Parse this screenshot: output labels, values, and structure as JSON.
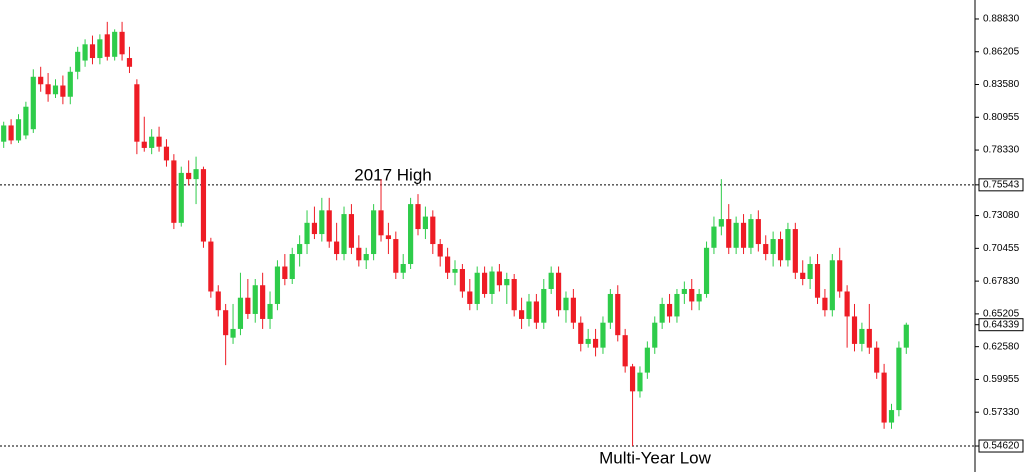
{
  "chart_data": {
    "type": "candlestick",
    "ylim": [
      0.535,
      0.9035
    ],
    "yticks": [
      {
        "value": 0.8883,
        "label": "0.88830"
      },
      0.86205,
      {
        "value": 0.8358,
        "label": "0.83580"
      },
      0.80955,
      {
        "value": 0.7833,
        "label": "0.78330"
      },
      0.75543,
      {
        "value": 0.7308,
        "label": "0.73080"
      },
      0.70455,
      {
        "value": 0.6783,
        "label": "0.67830"
      },
      0.65205,
      0.64339,
      {
        "value": 0.6258,
        "label": "0.62580"
      },
      0.59955,
      {
        "value": 0.5733,
        "label": "0.57330"
      },
      {
        "value": 0.5462,
        "label": "0.54620"
      }
    ],
    "annotations": [
      {
        "text": "2017 High",
        "y": 0.75543
      },
      {
        "text": "Multi-Year Low",
        "y": 0.5462
      }
    ],
    "up_color": "#2ecc4a",
    "down_color": "#ee1c25",
    "open": [
      0.79,
      0.803,
      0.791,
      0.795,
      0.8,
      0.842,
      0.836,
      0.828,
      0.835,
      0.826,
      0.846,
      0.855,
      0.868,
      0.857,
      0.876,
      0.858,
      0.878,
      0.857,
      0.836,
      0.79,
      0.785,
      0.794,
      0.786,
      0.775,
      0.725,
      0.765,
      0.76,
      0.768,
      0.71,
      0.67,
      0.655,
      0.633,
      0.64,
      0.665,
      0.652,
      0.675,
      0.648,
      0.66,
      0.69,
      0.68,
      0.7,
      0.708,
      0.725,
      0.716,
      0.735,
      0.71,
      0.7,
      0.732,
      0.705,
      0.695,
      0.7,
      0.735,
      0.715,
      0.712,
      0.685,
      0.692,
      0.74,
      0.72,
      0.73,
      0.708,
      0.698,
      0.685,
      0.688,
      0.67,
      0.66,
      0.685,
      0.668,
      0.686,
      0.675,
      0.68,
      0.655,
      0.648,
      0.662,
      0.645,
      0.672,
      0.685,
      0.655,
      0.665,
      0.645,
      0.628,
      0.632,
      0.625,
      0.645,
      0.668,
      0.635,
      0.61,
      0.59,
      0.605,
      0.625,
      0.645,
      0.66,
      0.65,
      0.668,
      0.672,
      0.662,
      0.668,
      0.705,
      0.722,
      0.728,
      0.705,
      0.725,
      0.705,
      0.728,
      0.708,
      0.7,
      0.712,
      0.695,
      0.72,
      0.685,
      0.68,
      0.692,
      0.665,
      0.655,
      0.695,
      0.67,
      0.65,
      0.628,
      0.64,
      0.625,
      0.605,
      0.565,
      0.575,
      0.625
    ],
    "high": [
      0.806,
      0.808,
      0.812,
      0.822,
      0.848,
      0.85,
      0.845,
      0.84,
      0.843,
      0.85,
      0.866,
      0.872,
      0.875,
      0.876,
      0.886,
      0.88,
      0.886,
      0.866,
      0.84,
      0.81,
      0.8,
      0.802,
      0.792,
      0.78,
      0.77,
      0.775,
      0.778,
      0.77,
      0.713,
      0.675,
      0.66,
      0.66,
      0.685,
      0.68,
      0.68,
      0.685,
      0.67,
      0.695,
      0.7,
      0.705,
      0.715,
      0.735,
      0.738,
      0.745,
      0.745,
      0.725,
      0.738,
      0.74,
      0.715,
      0.705,
      0.74,
      0.76,
      0.725,
      0.718,
      0.7,
      0.745,
      0.748,
      0.738,
      0.735,
      0.712,
      0.705,
      0.695,
      0.692,
      0.68,
      0.69,
      0.69,
      0.69,
      0.692,
      0.685,
      0.684,
      0.665,
      0.668,
      0.668,
      0.68,
      0.69,
      0.69,
      0.67,
      0.672,
      0.65,
      0.64,
      0.64,
      0.65,
      0.672,
      0.675,
      0.64,
      0.612,
      0.61,
      0.63,
      0.65,
      0.665,
      0.668,
      0.672,
      0.678,
      0.68,
      0.672,
      0.71,
      0.73,
      0.76,
      0.74,
      0.73,
      0.732,
      0.732,
      0.735,
      0.715,
      0.718,
      0.718,
      0.725,
      0.725,
      0.695,
      0.698,
      0.7,
      0.672,
      0.7,
      0.705,
      0.675,
      0.66,
      0.645,
      0.66,
      0.63,
      0.612,
      0.58,
      0.63,
      0.645
    ],
    "low": [
      0.785,
      0.788,
      0.789,
      0.792,
      0.797,
      0.83,
      0.822,
      0.825,
      0.82,
      0.82,
      0.84,
      0.85,
      0.852,
      0.852,
      0.855,
      0.855,
      0.855,
      0.845,
      0.78,
      0.782,
      0.78,
      0.782,
      0.77,
      0.72,
      0.722,
      0.755,
      0.74,
      0.705,
      0.665,
      0.65,
      0.611,
      0.628,
      0.635,
      0.648,
      0.645,
      0.64,
      0.64,
      0.655,
      0.675,
      0.676,
      0.69,
      0.7,
      0.712,
      0.71,
      0.705,
      0.695,
      0.695,
      0.7,
      0.69,
      0.688,
      0.695,
      0.71,
      0.7,
      0.68,
      0.68,
      0.688,
      0.715,
      0.712,
      0.7,
      0.69,
      0.68,
      0.675,
      0.665,
      0.655,
      0.655,
      0.665,
      0.66,
      0.67,
      0.66,
      0.65,
      0.64,
      0.642,
      0.64,
      0.64,
      0.668,
      0.65,
      0.645,
      0.64,
      0.622,
      0.625,
      0.618,
      0.62,
      0.64,
      0.63,
      0.605,
      0.5462,
      0.585,
      0.6,
      0.62,
      0.64,
      0.645,
      0.645,
      0.66,
      0.655,
      0.655,
      0.665,
      0.7,
      0.715,
      0.7,
      0.7,
      0.7,
      0.7,
      0.702,
      0.695,
      0.69,
      0.69,
      0.69,
      0.68,
      0.675,
      0.672,
      0.66,
      0.65,
      0.65,
      0.665,
      0.625,
      0.622,
      0.622,
      0.62,
      0.6,
      0.56,
      0.56,
      0.57,
      0.62
    ],
    "close": [
      0.803,
      0.791,
      0.808,
      0.818,
      0.842,
      0.836,
      0.828,
      0.835,
      0.826,
      0.846,
      0.862,
      0.868,
      0.857,
      0.872,
      0.858,
      0.878,
      0.86,
      0.85,
      0.79,
      0.785,
      0.794,
      0.786,
      0.775,
      0.725,
      0.765,
      0.76,
      0.768,
      0.71,
      0.67,
      0.655,
      0.635,
      0.64,
      0.665,
      0.652,
      0.675,
      0.648,
      0.66,
      0.69,
      0.68,
      0.7,
      0.708,
      0.725,
      0.716,
      0.735,
      0.71,
      0.7,
      0.732,
      0.705,
      0.695,
      0.7,
      0.735,
      0.715,
      0.712,
      0.685,
      0.692,
      0.74,
      0.72,
      0.73,
      0.708,
      0.698,
      0.685,
      0.688,
      0.67,
      0.66,
      0.685,
      0.668,
      0.686,
      0.675,
      0.68,
      0.655,
      0.648,
      0.662,
      0.645,
      0.672,
      0.685,
      0.655,
      0.665,
      0.645,
      0.628,
      0.632,
      0.625,
      0.645,
      0.668,
      0.635,
      0.61,
      0.59,
      0.605,
      0.625,
      0.645,
      0.66,
      0.65,
      0.668,
      0.672,
      0.662,
      0.668,
      0.705,
      0.722,
      0.728,
      0.705,
      0.725,
      0.705,
      0.728,
      0.708,
      0.7,
      0.712,
      0.695,
      0.72,
      0.685,
      0.68,
      0.692,
      0.665,
      0.655,
      0.695,
      0.67,
      0.65,
      0.628,
      0.64,
      0.625,
      0.605,
      0.565,
      0.575,
      0.625,
      0.64339
    ]
  }
}
